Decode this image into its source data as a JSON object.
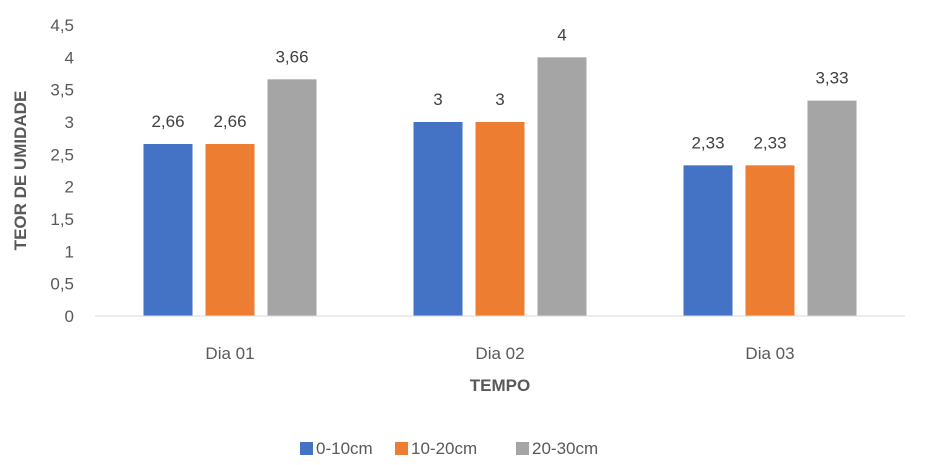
{
  "chart_data": {
    "type": "bar",
    "title": "",
    "xlabel": "TEMPO",
    "ylabel": "TEOR DE UMIDADE",
    "categories": [
      "Dia 01",
      "Dia 02",
      "Dia 03"
    ],
    "series": [
      {
        "name": "0-10cm",
        "color": "#4472C4",
        "values": [
          2.66,
          3,
          2.33
        ],
        "labels": [
          "2,66",
          "3",
          "2,33"
        ]
      },
      {
        "name": "10-20cm",
        "color": "#ED7D31",
        "values": [
          2.66,
          3,
          2.33
        ],
        "labels": [
          "2,66",
          "3",
          "2,33"
        ]
      },
      {
        "name": "20-30cm",
        "color": "#A5A5A5",
        "values": [
          3.66,
          4,
          3.33
        ],
        "labels": [
          "3,66",
          "4",
          "3,33"
        ]
      }
    ],
    "ylim": [
      0,
      4.5
    ],
    "yticks": [
      {
        "value": 0,
        "label": "0"
      },
      {
        "value": 0.5,
        "label": "0,5"
      },
      {
        "value": 1,
        "label": "1"
      },
      {
        "value": 1.5,
        "label": "1,5"
      },
      {
        "value": 2,
        "label": "2"
      },
      {
        "value": 2.5,
        "label": "2,5"
      },
      {
        "value": 3,
        "label": "3"
      },
      {
        "value": 3.5,
        "label": "3,5"
      },
      {
        "value": 4,
        "label": "4"
      },
      {
        "value": 4.5,
        "label": "4,5"
      }
    ],
    "grid": false,
    "legend": "bottom"
  }
}
